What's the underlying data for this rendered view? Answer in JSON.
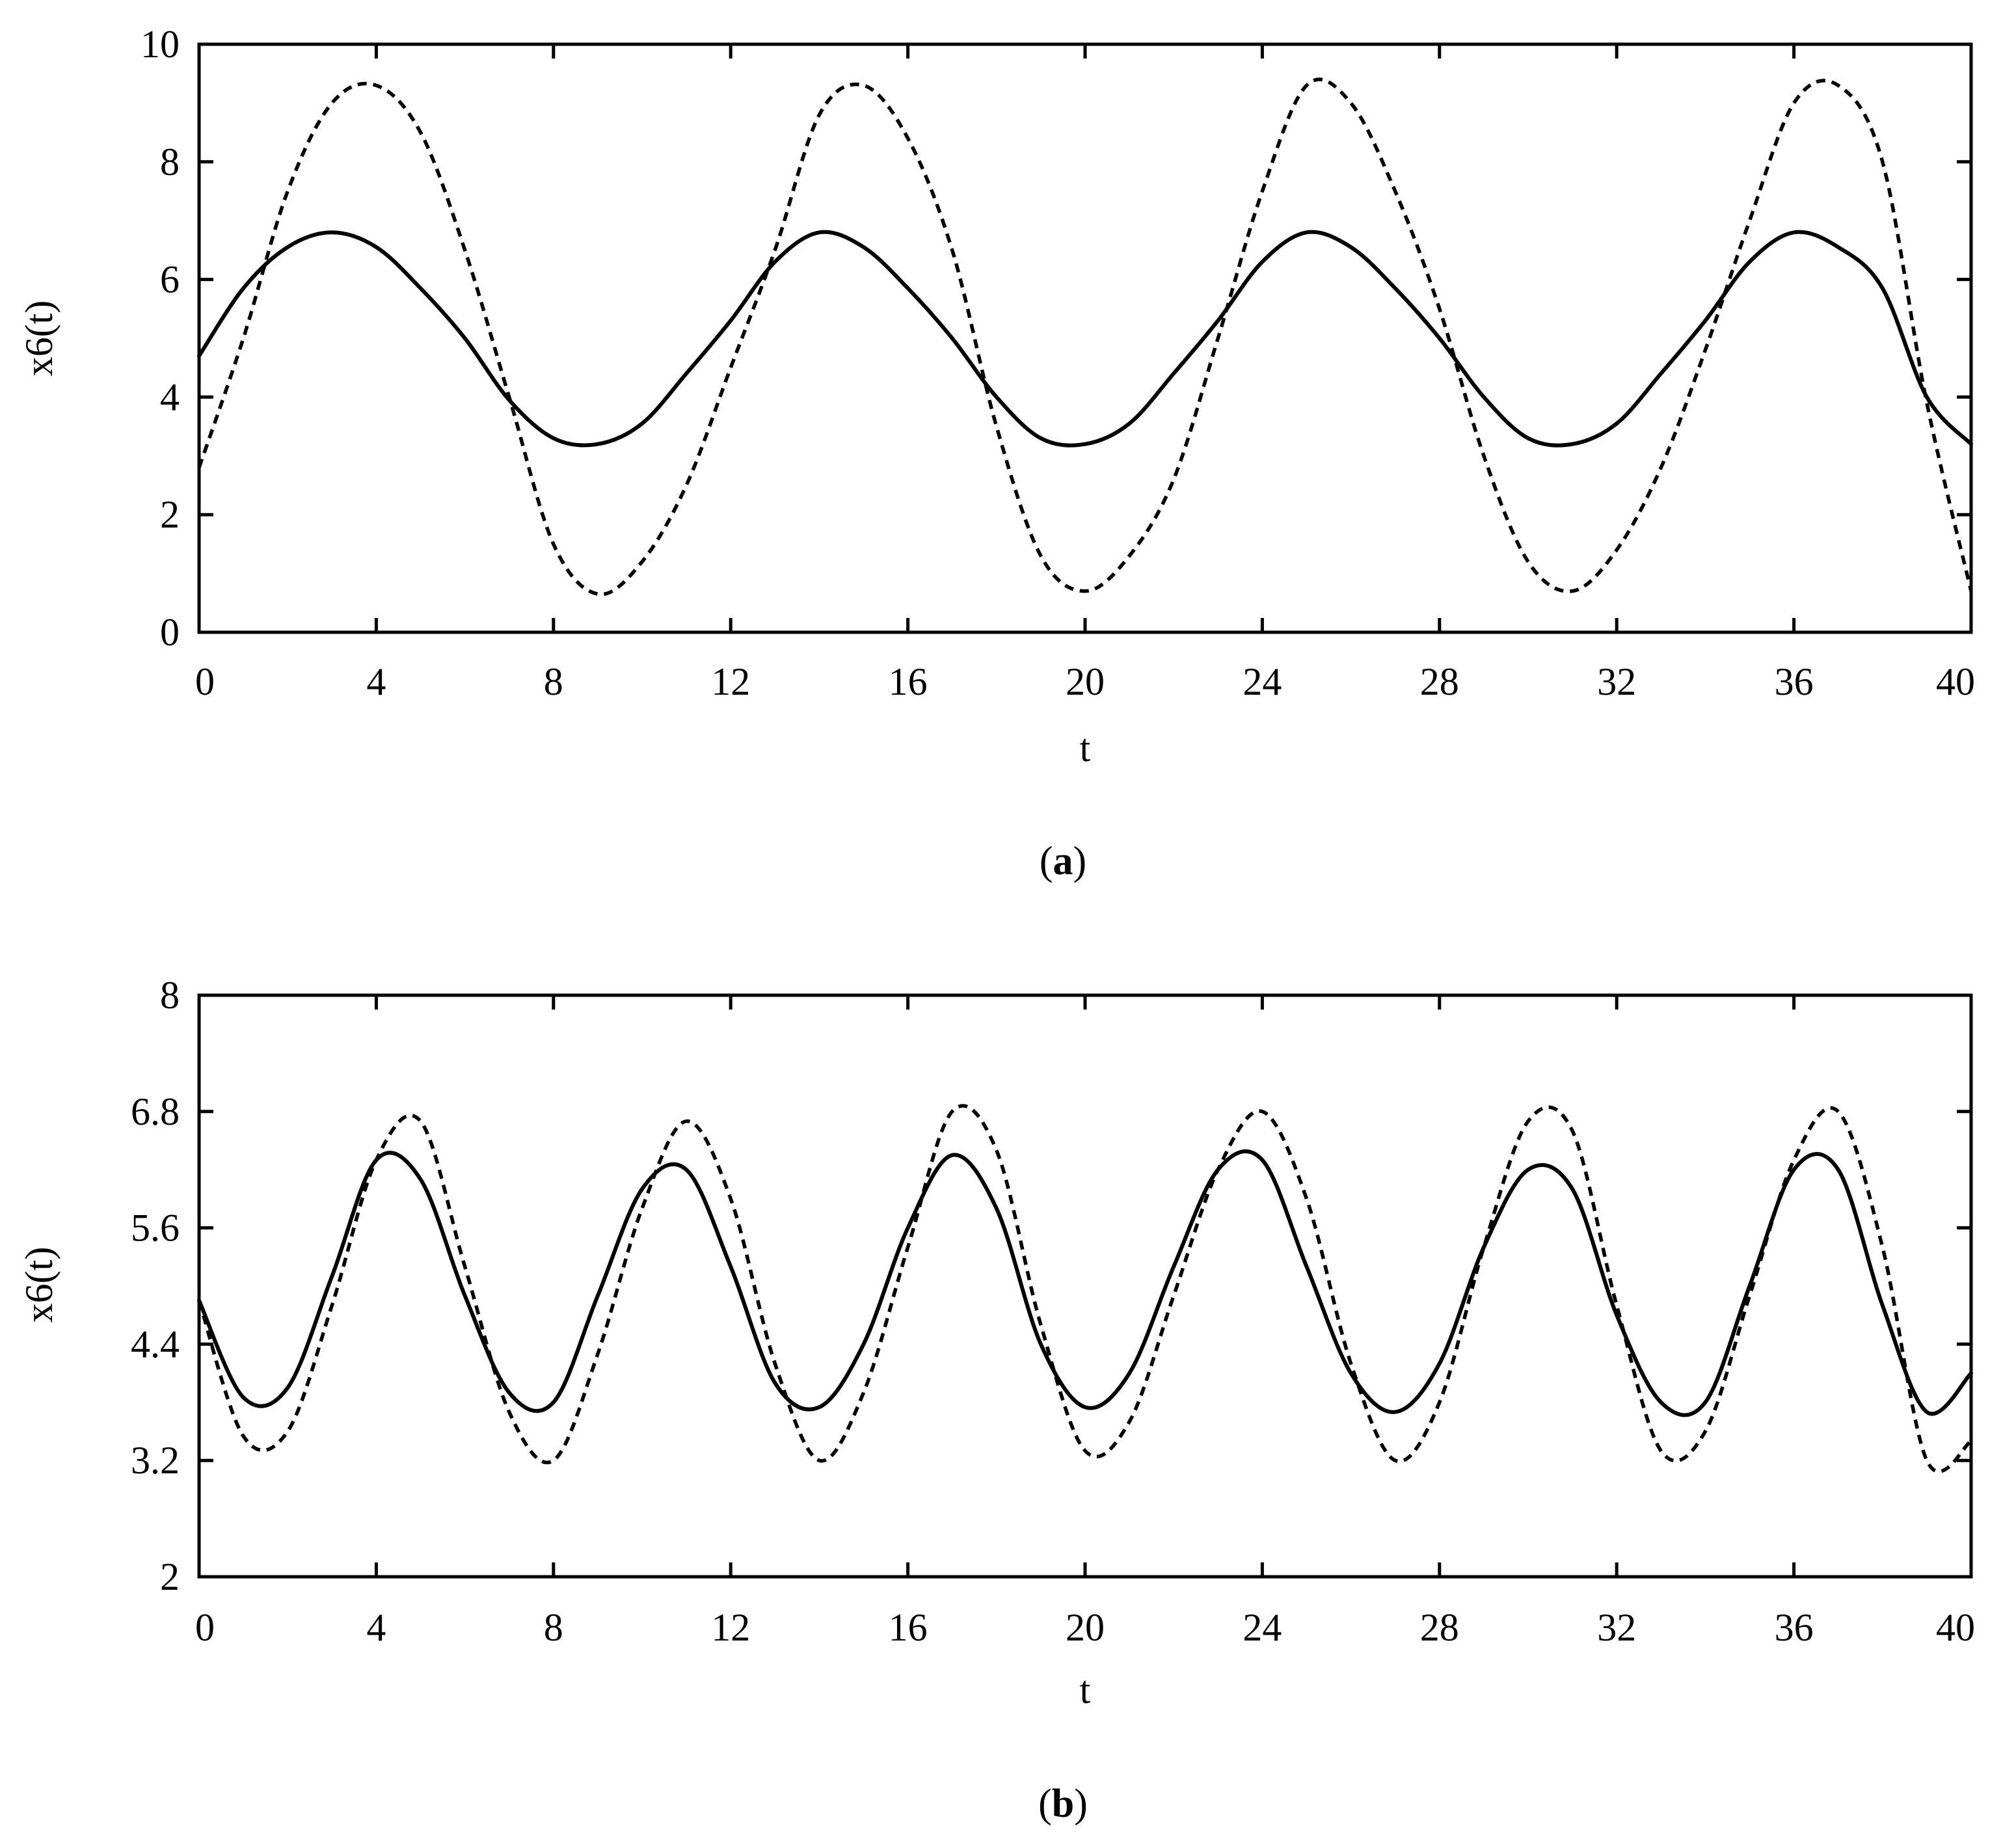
{
  "chart_data": [
    {
      "type": "line",
      "panel_label": "a",
      "xlabel": "t",
      "ylabel": "x6(t)",
      "xlim": [
        0,
        40
      ],
      "ylim": [
        0,
        10
      ],
      "x_ticks": [
        0,
        4,
        8,
        12,
        16,
        20,
        24,
        28,
        32,
        36,
        40
      ],
      "y_ticks": [
        0,
        2,
        4,
        6,
        8,
        10
      ],
      "y_tick_labels": [
        "0",
        "2",
        "4",
        "6",
        "8",
        "10"
      ],
      "grid": false,
      "x": [
        0,
        1,
        2,
        3,
        4,
        5,
        6,
        7,
        8,
        9,
        10,
        11,
        12,
        13,
        14,
        15,
        16,
        17,
        18,
        19,
        20,
        21,
        22,
        23,
        24,
        25,
        26,
        27,
        28,
        29,
        30,
        31,
        32,
        33,
        34,
        35,
        36,
        37,
        38,
        39,
        40
      ],
      "series": [
        {
          "style": "solid",
          "values": [
            4.7,
            5.85,
            6.55,
            6.8,
            6.55,
            5.85,
            5.0,
            3.95,
            3.3,
            3.2,
            3.55,
            4.4,
            5.3,
            6.3,
            6.8,
            6.55,
            5.85,
            5.0,
            4.0,
            3.3,
            3.2,
            3.55,
            4.4,
            5.3,
            6.3,
            6.8,
            6.55,
            5.85,
            5.0,
            4.0,
            3.3,
            3.2,
            3.55,
            4.4,
            5.3,
            6.3,
            6.8,
            6.55,
            5.85,
            4.0,
            3.2
          ]
        },
        {
          "style": "dashed",
          "values": [
            2.8,
            5.0,
            7.5,
            9.0,
            9.3,
            8.5,
            6.5,
            4.0,
            1.5,
            0.65,
            1.2,
            2.5,
            4.5,
            6.5,
            8.8,
            9.3,
            8.4,
            6.5,
            3.5,
            1.3,
            0.7,
            1.3,
            2.6,
            5.0,
            7.5,
            9.3,
            9.0,
            7.5,
            5.5,
            3.0,
            1.2,
            0.7,
            1.4,
            2.8,
            4.8,
            7.0,
            9.0,
            9.3,
            8.0,
            3.9,
            0.7
          ]
        }
      ]
    },
    {
      "type": "line",
      "panel_label": "b",
      "xlabel": "t",
      "ylabel": "x6(t)",
      "xlim": [
        0,
        40
      ],
      "ylim": [
        2,
        8
      ],
      "x_ticks": [
        0,
        4,
        8,
        12,
        16,
        20,
        24,
        28,
        32,
        36,
        40
      ],
      "y_ticks": [
        2,
        3.2,
        4.4,
        5.6,
        6.8,
        8
      ],
      "y_tick_labels": [
        "2",
        "3.2",
        "4.4",
        "5.6",
        "6.8",
        "8"
      ],
      "grid": false,
      "x": [
        0,
        1,
        2,
        3,
        4,
        5,
        6,
        7,
        8,
        9,
        10,
        11,
        12,
        13,
        14,
        15,
        16,
        17,
        18,
        19,
        20,
        21,
        22,
        23,
        24,
        25,
        26,
        27,
        28,
        29,
        30,
        31,
        32,
        33,
        34,
        35,
        36,
        37,
        38,
        39,
        40
      ],
      "series": [
        {
          "style": "solid",
          "values": [
            4.85,
            3.85,
            3.95,
            5.1,
            6.3,
            6.1,
            4.9,
            3.9,
            3.8,
            4.9,
            6.0,
            6.2,
            5.2,
            4.0,
            3.75,
            4.4,
            5.6,
            6.35,
            5.8,
            4.4,
            3.75,
            4.1,
            5.2,
            6.2,
            6.3,
            5.2,
            4.1,
            3.7,
            4.2,
            5.4,
            6.2,
            6.0,
            4.7,
            3.8,
            3.8,
            5.0,
            6.2,
            6.2,
            4.8,
            3.7,
            4.1
          ]
        },
        {
          "style": "dashed",
          "values": [
            4.85,
            3.45,
            3.5,
            4.8,
            6.3,
            6.7,
            5.2,
            3.7,
            3.2,
            4.3,
            5.8,
            6.7,
            5.9,
            4.2,
            3.2,
            3.9,
            5.4,
            6.8,
            6.4,
            4.6,
            3.3,
            3.6,
            4.9,
            6.2,
            6.8,
            5.9,
            4.2,
            3.2,
            3.8,
            5.4,
            6.7,
            6.6,
            4.8,
            3.3,
            3.5,
            4.9,
            6.3,
            6.8,
            5.4,
            3.2,
            3.4
          ]
        }
      ]
    }
  ]
}
